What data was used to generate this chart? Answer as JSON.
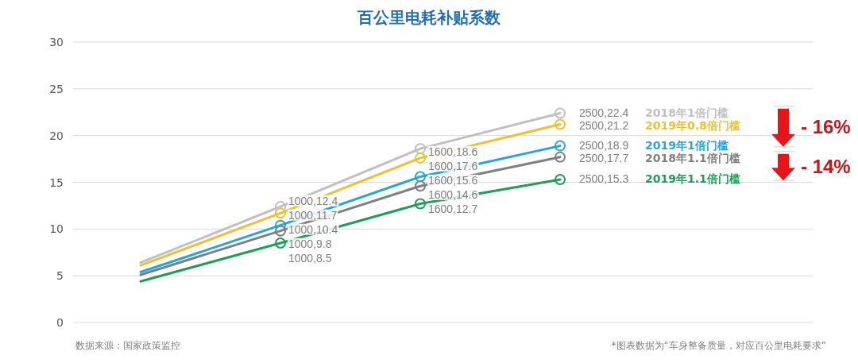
{
  "chart_data": {
    "type": "line",
    "title": "百公里电耗补贴系数",
    "categories": [
      null,
      null,
      null,
      null
    ],
    "ylim": [
      0,
      30
    ],
    "yticks": [
      0,
      5,
      10,
      15,
      20,
      25,
      30
    ],
    "grid": "y",
    "legend": "right",
    "tick_labels": "y",
    "marker": "circle",
    "series": [
      {
        "name": "2018年1倍门槛",
        "color": "#c0c0c0",
        "values": [
          6.4,
          12.4,
          18.6,
          22.4
        ],
        "value_labels": [
          null,
          "1000,12.4",
          "1600,18.6",
          "2500,22.4"
        ]
      },
      {
        "name": "2019年0.8倍门槛",
        "color": "#f0c030",
        "values": [
          6.1,
          11.7,
          17.6,
          21.2
        ],
        "value_labels": [
          null,
          "1000,11.7",
          "1600,17.6",
          "2500,21.2"
        ]
      },
      {
        "name": "2019年1倍门槛",
        "color": "#22a8d8",
        "values": [
          5.4,
          10.4,
          15.6,
          18.9
        ],
        "value_labels": [
          null,
          "1000,10.4",
          "1600,15.6",
          "2500,18.9"
        ]
      },
      {
        "name": "2018年1.1倍门槛",
        "color": "#7f7f7f",
        "values": [
          5.1,
          9.8,
          14.6,
          17.7
        ],
        "value_labels": [
          null,
          "1000,9.8",
          "1600,14.6",
          "2500,17.7"
        ]
      },
      {
        "name": "2019年1.1倍门槛",
        "color": "#1ba055",
        "values": [
          4.4,
          8.5,
          12.7,
          15.3
        ],
        "value_labels": [
          null,
          "1000,8.5",
          "1600,12.7",
          "2500,15.3"
        ]
      }
    ],
    "annotations": [
      "- 16%",
      "- 14%",
      "数据来源：国家政策监控",
      "*图表数据为“车身整备质量，对应百公里电耗要求”"
    ]
  }
}
